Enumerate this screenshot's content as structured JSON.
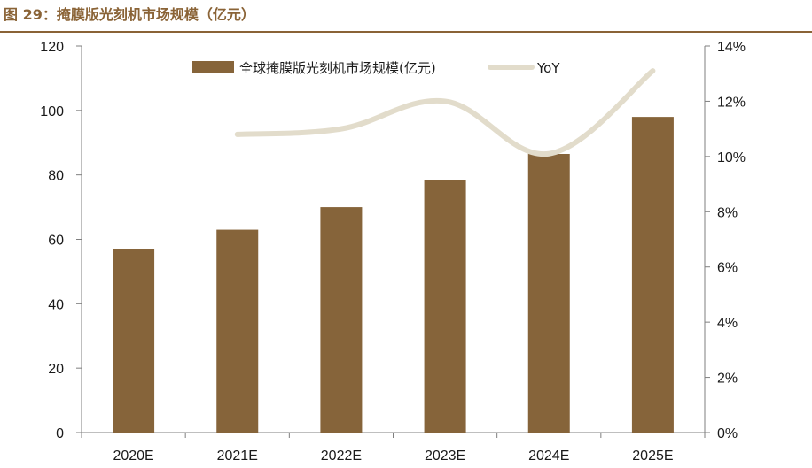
{
  "figure": {
    "title": "图 29：掩膜版光刻机市场规模（亿元）"
  },
  "chart_data": {
    "type": "bar",
    "categories": [
      "2020E",
      "2021E",
      "2022E",
      "2023E",
      "2024E",
      "2025E"
    ],
    "series": [
      {
        "name": "全球掩膜版光刻机市场规模(亿元)",
        "type": "bar",
        "axis": "left",
        "values": [
          57,
          63,
          70,
          78.5,
          86.5,
          98
        ],
        "color": "#86643a"
      },
      {
        "name": "YoY",
        "type": "line",
        "axis": "right",
        "values": [
          0.108,
          null,
          0.11,
          0.12,
          0.101,
          0.131
        ],
        "color": "#e2dccb"
      }
    ],
    "y_left": {
      "min": 0,
      "max": 120,
      "ticks": [
        "0",
        "20",
        "40",
        "60",
        "80",
        "100",
        "120"
      ]
    },
    "y_right": {
      "min": 0,
      "max": 0.14,
      "ticks": [
        "0%",
        "2%",
        "4%",
        "6%",
        "8%",
        "10%",
        "12%",
        "14%"
      ]
    },
    "legend_position": "top-center",
    "grid": false
  }
}
